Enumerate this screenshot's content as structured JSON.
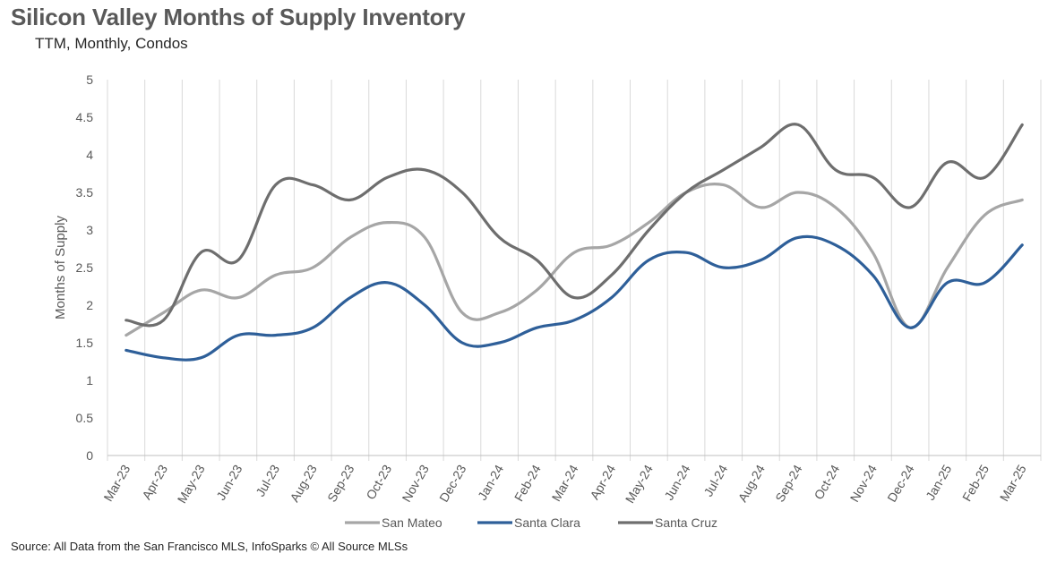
{
  "chart_data": {
    "type": "line",
    "title": "Silicon Valley Months of Supply Inventory",
    "subtitle": "TTM, Monthly, Condos",
    "ylabel": "Months of Supply",
    "xlabel": "",
    "ylim": [
      0,
      5
    ],
    "yticks": [
      "0",
      "0.5",
      "1",
      "1.5",
      "2",
      "2.5",
      "3",
      "3.5",
      "4",
      "4.5",
      "5"
    ],
    "grid": "vertical",
    "legend_position": "bottom",
    "categories": [
      "Mar-23",
      "Apr-23",
      "May-23",
      "Jun-23",
      "Jul-23",
      "Aug-23",
      "Sep-23",
      "Oct-23",
      "Nov-23",
      "Dec-23",
      "Jan-24",
      "Feb-24",
      "Mar-24",
      "Apr-24",
      "May-24",
      "Jun-24",
      "Jul-24",
      "Aug-24",
      "Sep-24",
      "Oct-24",
      "Nov-24",
      "Dec-24",
      "Jan-25",
      "Feb-25",
      "Mar-25"
    ],
    "series": [
      {
        "name": "San Mateo",
        "color": "#a6a6a6",
        "values": [
          1.6,
          1.9,
          2.2,
          2.1,
          2.4,
          2.5,
          2.9,
          3.1,
          2.9,
          1.9,
          1.9,
          2.2,
          2.7,
          2.8,
          3.1,
          3.5,
          3.6,
          3.3,
          3.5,
          3.3,
          2.7,
          1.7,
          2.5,
          3.2,
          3.4
        ]
      },
      {
        "name": "Santa Clara",
        "color": "#2e5f99",
        "values": [
          1.4,
          1.3,
          1.3,
          1.6,
          1.6,
          1.7,
          2.1,
          2.3,
          2.0,
          1.5,
          1.5,
          1.7,
          1.8,
          2.1,
          2.6,
          2.7,
          2.5,
          2.6,
          2.9,
          2.8,
          2.4,
          1.7,
          2.3,
          2.3,
          2.8
        ]
      },
      {
        "name": "Santa Cruz",
        "color": "#6e6e6e",
        "values": [
          1.8,
          1.8,
          2.7,
          2.6,
          3.6,
          3.6,
          3.4,
          3.7,
          3.8,
          3.5,
          2.9,
          2.6,
          2.1,
          2.4,
          3.0,
          3.5,
          3.8,
          4.1,
          4.4,
          3.8,
          3.7,
          3.3,
          3.9,
          3.7,
          4.4
        ]
      }
    ]
  },
  "source": "Source: All Data from the San Francisco MLS, InfoSparks © All Source MLSs"
}
